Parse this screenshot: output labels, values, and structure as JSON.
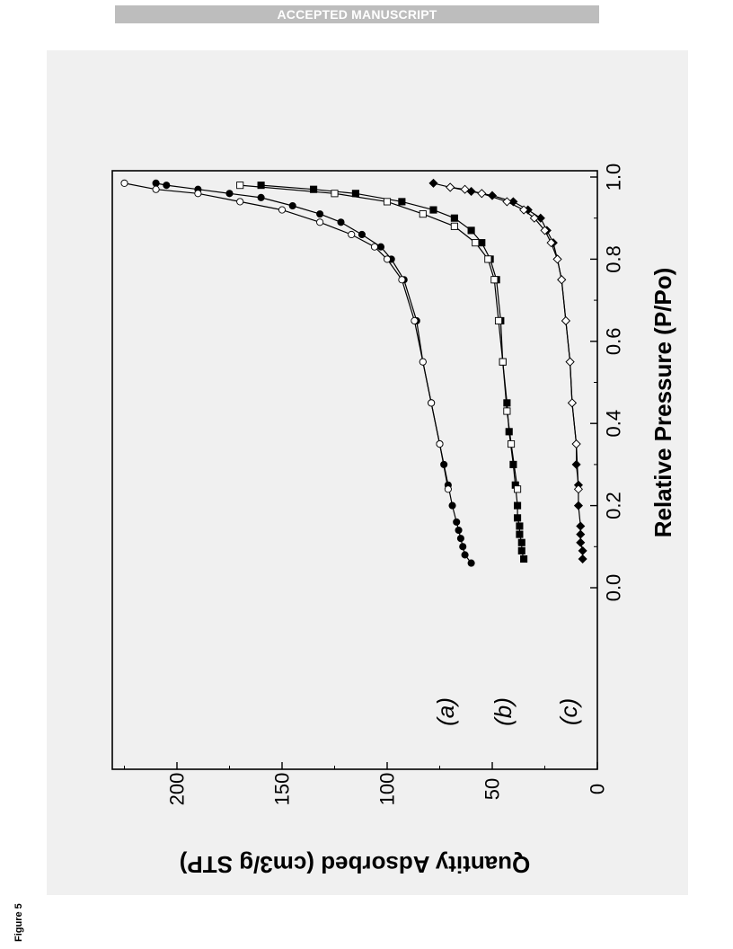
{
  "header": {
    "banner_text": "ACCEPTED MANUSCRIPT"
  },
  "figure": {
    "label": "Figure 5"
  },
  "chart_data": {
    "type": "line",
    "orientation": "rotated 90° clockwise",
    "xlabel": "Relative Pressure (P/Po)",
    "ylabel": "Quantity Adsorbed (cm3/g STP)",
    "xlim": [
      0.0,
      1.0
    ],
    "ylim": [
      0,
      230
    ],
    "x_ticks": [
      "0.0",
      "0.2",
      "0.4",
      "0.6",
      "0.8",
      "1.0"
    ],
    "y_ticks": [
      "0",
      "50",
      "100",
      "150",
      "200"
    ],
    "annotations": [
      "(a)",
      "(b)",
      "(c)"
    ],
    "series": [
      {
        "group": "a",
        "marker": "circle",
        "fill": "filled",
        "x": [
          0.06,
          0.08,
          0.1,
          0.12,
          0.14,
          0.16,
          0.2,
          0.25,
          0.3,
          0.35,
          0.45,
          0.55,
          0.65,
          0.75,
          0.8,
          0.83,
          0.86,
          0.89,
          0.91,
          0.93,
          0.95,
          0.96,
          0.97,
          0.98,
          0.985
        ],
        "y": [
          60,
          63,
          64,
          65,
          66,
          67,
          69,
          71,
          73,
          75,
          79,
          83,
          86,
          92,
          98,
          103,
          112,
          122,
          132,
          145,
          160,
          175,
          190,
          205,
          210
        ]
      },
      {
        "group": "a",
        "marker": "circle",
        "fill": "open",
        "x": [
          0.24,
          0.35,
          0.45,
          0.55,
          0.65,
          0.75,
          0.8,
          0.83,
          0.86,
          0.89,
          0.92,
          0.94,
          0.96,
          0.97,
          0.985
        ],
        "y": [
          71,
          75,
          79,
          83,
          87,
          93,
          100,
          106,
          117,
          132,
          150,
          170,
          190,
          210,
          225
        ]
      },
      {
        "group": "b",
        "marker": "square",
        "fill": "filled",
        "x": [
          0.07,
          0.09,
          0.11,
          0.13,
          0.15,
          0.17,
          0.2,
          0.25,
          0.3,
          0.38,
          0.45,
          0.55,
          0.65,
          0.75,
          0.8,
          0.84,
          0.87,
          0.9,
          0.92,
          0.94,
          0.96,
          0.97,
          0.98
        ],
        "y": [
          35,
          36,
          36,
          37,
          37,
          38,
          38,
          39,
          40,
          42,
          43,
          45,
          46,
          48,
          51,
          55,
          60,
          68,
          78,
          93,
          115,
          135,
          160
        ]
      },
      {
        "group": "b",
        "marker": "square",
        "fill": "open",
        "x": [
          0.24,
          0.35,
          0.43,
          0.55,
          0.65,
          0.75,
          0.8,
          0.84,
          0.88,
          0.91,
          0.94,
          0.96,
          0.98
        ],
        "y": [
          38,
          41,
          43,
          45,
          47,
          49,
          52,
          58,
          68,
          83,
          100,
          125,
          170
        ]
      },
      {
        "group": "c",
        "marker": "diamond",
        "fill": "filled",
        "x": [
          0.07,
          0.09,
          0.11,
          0.13,
          0.15,
          0.2,
          0.25,
          0.3,
          0.35,
          0.45,
          0.55,
          0.65,
          0.75,
          0.8,
          0.84,
          0.87,
          0.9,
          0.92,
          0.94,
          0.955,
          0.965,
          0.975,
          0.985
        ],
        "y": [
          7,
          7,
          8,
          8,
          8,
          9,
          9,
          10,
          10,
          12,
          13,
          15,
          17,
          19,
          21,
          24,
          27,
          33,
          40,
          50,
          60,
          70,
          78
        ]
      },
      {
        "group": "c",
        "marker": "diamond",
        "fill": "open",
        "x": [
          0.24,
          0.35,
          0.45,
          0.55,
          0.65,
          0.75,
          0.8,
          0.84,
          0.87,
          0.9,
          0.92,
          0.94,
          0.96,
          0.97,
          0.975
        ],
        "y": [
          9,
          10,
          12,
          13,
          15,
          17,
          19,
          22,
          25,
          30,
          35,
          43,
          55,
          63,
          70
        ]
      }
    ]
  }
}
